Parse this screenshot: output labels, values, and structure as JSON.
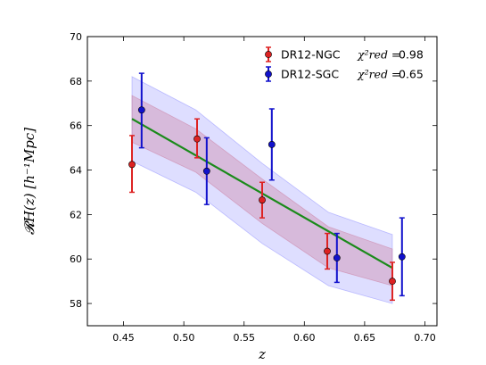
{
  "chart_data": {
    "type": "scatter",
    "xlabel": "z",
    "ylabel": "𝓡H(z) [h⁻¹Mpc]",
    "xlim": [
      0.42,
      0.71
    ],
    "ylim": [
      57,
      70
    ],
    "xticks": [
      "0.45",
      "0.50",
      "0.55",
      "0.60",
      "0.65",
      "0.70"
    ],
    "yticks": [
      "58",
      "60",
      "62",
      "64",
      "66",
      "68",
      "70"
    ],
    "legend_position": "top-right",
    "grid": false,
    "series": [
      {
        "name": "DR12-NGC",
        "chi2_label": "χ²red =",
        "chi2_value": "0.98",
        "color": "#dd2222",
        "points": [
          {
            "x": 0.457,
            "y": 64.25,
            "lo": 63.0,
            "hi": 65.55
          },
          {
            "x": 0.511,
            "y": 65.4,
            "lo": 64.55,
            "hi": 66.3
          },
          {
            "x": 0.565,
            "y": 62.65,
            "lo": 61.85,
            "hi": 63.45
          },
          {
            "x": 0.619,
            "y": 60.35,
            "lo": 59.55,
            "hi": 61.15
          },
          {
            "x": 0.673,
            "y": 59.0,
            "lo": 58.15,
            "hi": 59.85
          }
        ]
      },
      {
        "name": "DR12-SGC",
        "chi2_label": "χ²red =",
        "chi2_value": "0.65",
        "color": "#1111cc",
        "points": [
          {
            "x": 0.465,
            "y": 66.7,
            "lo": 65.0,
            "hi": 68.35
          },
          {
            "x": 0.519,
            "y": 63.95,
            "lo": 62.45,
            "hi": 65.45
          },
          {
            "x": 0.573,
            "y": 65.15,
            "lo": 63.55,
            "hi": 66.75
          },
          {
            "x": 0.627,
            "y": 60.05,
            "lo": 58.95,
            "hi": 61.15
          },
          {
            "x": 0.681,
            "y": 60.1,
            "lo": 58.35,
            "hi": 61.85
          }
        ]
      }
    ],
    "fit": {
      "color": "#1a8a1a",
      "x": [
        0.457,
        0.673
      ],
      "y": [
        66.3,
        59.6
      ]
    },
    "bands": [
      {
        "color": "#8888ff",
        "x": [
          0.457,
          0.51,
          0.565,
          0.62,
          0.673
        ],
        "upper": [
          68.2,
          66.7,
          64.3,
          62.1,
          61.1
        ],
        "lower": [
          64.4,
          63.0,
          60.7,
          58.8,
          58.0
        ]
      },
      {
        "color": "#cc7799",
        "x": [
          0.457,
          0.51,
          0.565,
          0.62,
          0.673
        ],
        "upper": [
          67.35,
          65.85,
          63.6,
          61.45,
          60.45
        ],
        "lower": [
          65.25,
          63.9,
          61.6,
          59.6,
          58.8
        ]
      }
    ]
  }
}
